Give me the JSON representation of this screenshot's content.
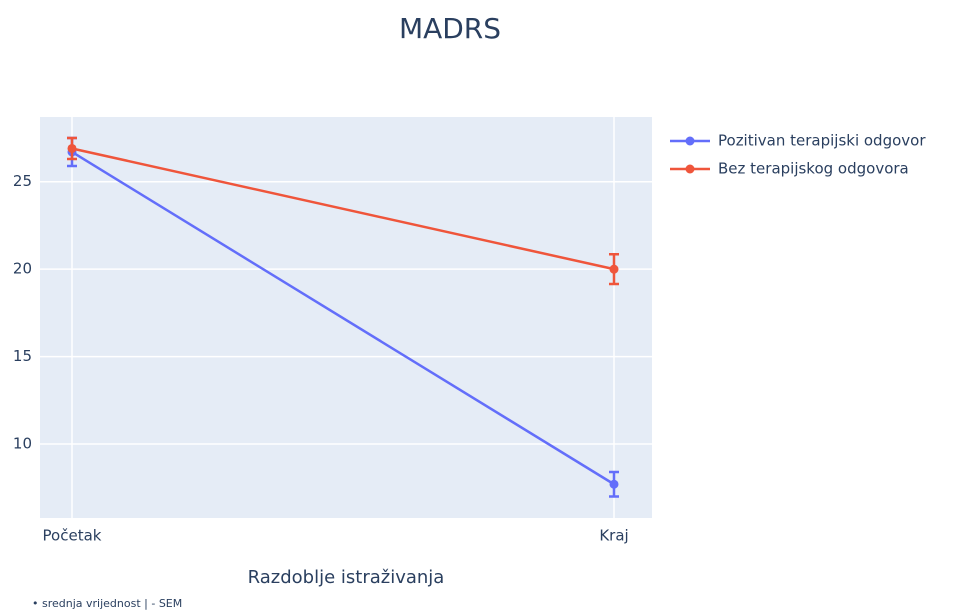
{
  "chart_data": {
    "type": "line",
    "title": "MADRS",
    "x_label": "Razdoblje istraživanja",
    "annotation": "• srednja vrijednost  |  - SEM",
    "categories": [
      "Početak",
      "Kraj"
    ],
    "series": [
      {
        "name": "Pozitivan terapijski odgovor",
        "color": "#636efa",
        "values": [
          26.7,
          7.7
        ],
        "error": [
          0.8,
          0.7
        ]
      },
      {
        "name": "Bez terapijskog odgovora",
        "color": "#ef553b",
        "values": [
          26.9,
          20.0
        ],
        "error": [
          0.6,
          0.85
        ]
      }
    ],
    "ylim": [
      5.77,
      28.7
    ],
    "yticks": [
      10,
      15,
      20,
      25
    ],
    "grid": true
  }
}
